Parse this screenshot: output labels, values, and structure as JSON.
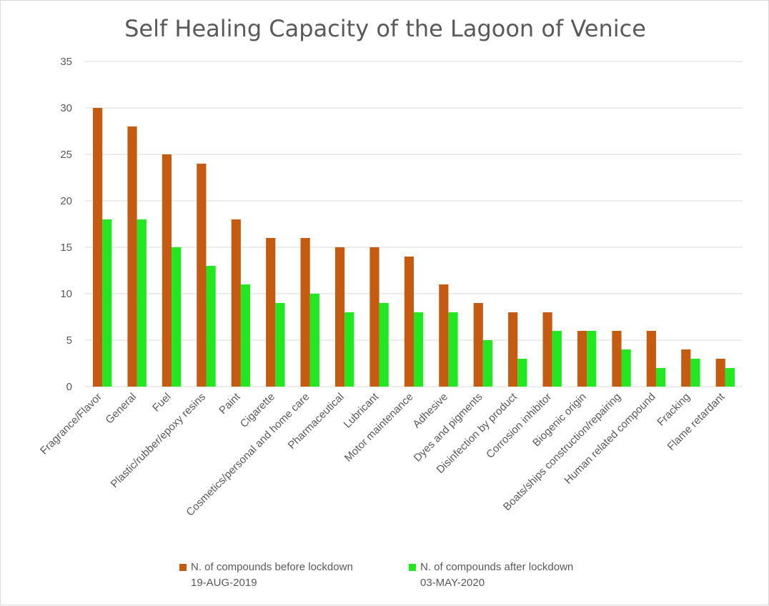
{
  "chart_data": {
    "type": "bar",
    "title": "Self Healing Capacity of the Lagoon of Venice",
    "xlabel": "",
    "ylabel": "",
    "ylim": [
      0,
      35
    ],
    "yticks": [
      0,
      5,
      10,
      15,
      20,
      25,
      30,
      35
    ],
    "grid": true,
    "legend_position": "bottom",
    "categories": [
      "Fragrance/Flavor",
      "General",
      "Fuel",
      "Plastic/rubber/epoxy resins",
      "Paint",
      "Cigarette",
      "Cosmetics/personal and home care",
      "Pharmaceutical",
      "Lubricant",
      "Motor maintenance",
      "Adhesive",
      "Dyes and pigments",
      "Disinfection by product",
      "Corrosion inhibitor",
      "Biogenic origin",
      "Boats/ships construction/repairing",
      "Human related compound",
      "Fracking",
      "Flame retardant"
    ],
    "series": [
      {
        "name": "N. of compounds before lockdown",
        "date": "19-AUG-2019",
        "color": "#c55a11",
        "values": [
          30,
          28,
          25,
          24,
          18,
          16,
          16,
          15,
          15,
          14,
          11,
          9,
          8,
          8,
          6,
          6,
          6,
          4,
          3
        ]
      },
      {
        "name": "N. of compounds after lockdown",
        "date": "03-MAY-2020",
        "color": "#22e822",
        "values": [
          18,
          18,
          15,
          13,
          11,
          9,
          10,
          8,
          9,
          8,
          8,
          5,
          3,
          6,
          6,
          4,
          2,
          3,
          2
        ]
      }
    ]
  }
}
